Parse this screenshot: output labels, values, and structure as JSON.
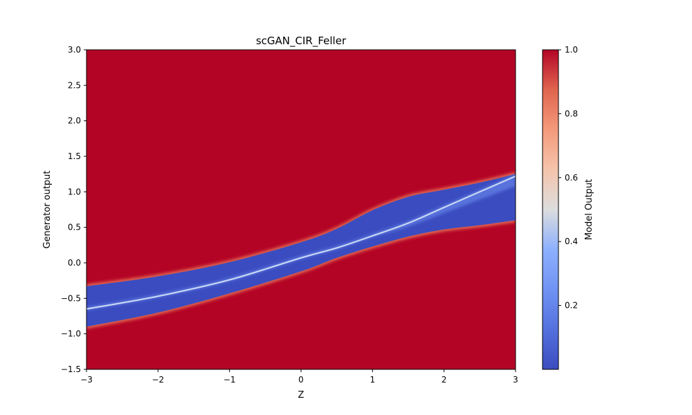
{
  "chart_data": {
    "type": "heatmap",
    "title": "scGAN_CIR_Feller",
    "xlabel": "Z",
    "ylabel": "Generator output",
    "xlim": [
      -3,
      3
    ],
    "ylim": [
      -1.5,
      3.0
    ],
    "x_ticks": [
      -3,
      -2,
      -1,
      0,
      1,
      2,
      3
    ],
    "x_tick_labels": [
      "−3",
      "−2",
      "−1",
      "0",
      "1",
      "2",
      "3"
    ],
    "y_ticks": [
      -1.5,
      -1.0,
      -0.5,
      0.0,
      0.5,
      1.0,
      1.5,
      2.0,
      2.5,
      3.0
    ],
    "y_tick_labels": [
      "−1.5",
      "−1.0",
      "−0.5",
      "0.0",
      "0.5",
      "1.0",
      "1.5",
      "2.0",
      "2.5",
      "3.0"
    ],
    "colormap": "coolwarm",
    "colorbar": {
      "label": "Model Output",
      "range": [
        0.0,
        1.0
      ],
      "ticks": [
        0.2,
        0.4,
        0.6,
        0.8,
        1.0
      ],
      "tick_labels": [
        "0.2",
        "0.4",
        "0.6",
        "0.8",
        "1.0"
      ]
    },
    "band": {
      "description_value": "low model output region (blue) surrounded by output 1.0 (red)",
      "z": [
        -3,
        -2,
        -1,
        0,
        0.5,
        1,
        1.5,
        2,
        2.5,
        3
      ],
      "upper": [
        -0.33,
        -0.19,
        0.01,
        0.29,
        0.48,
        0.74,
        0.93,
        1.03,
        1.13,
        1.25
      ],
      "lower": [
        -0.9,
        -0.7,
        -0.43,
        -0.12,
        0.07,
        0.23,
        0.37,
        0.47,
        0.53,
        0.6
      ],
      "inner_line": [
        -0.65,
        -0.47,
        -0.24,
        0.07,
        0.21,
        0.38,
        0.56,
        0.78,
        1.0,
        1.22
      ],
      "inner_line_value": 0.4
    },
    "grid": false
  }
}
